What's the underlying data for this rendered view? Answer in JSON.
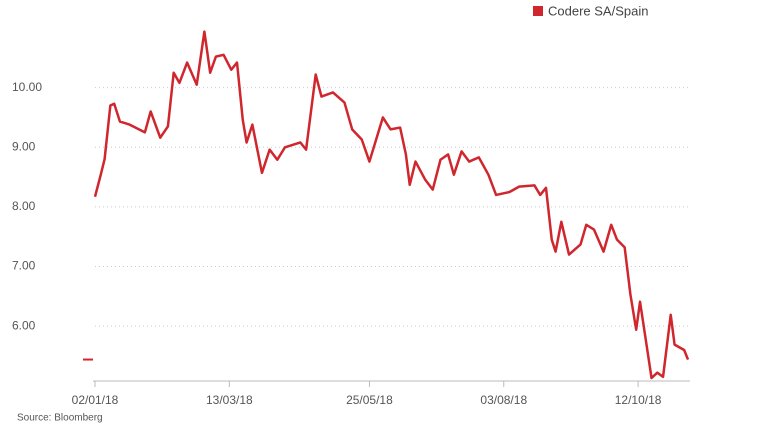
{
  "chart_data": {
    "type": "line",
    "source": "Source: Bloomberg",
    "x": [
      "02/01/18",
      "05/01/18",
      "07/01/18",
      "10/01/18",
      "12/01/18",
      "15/01/18",
      "20/01/18",
      "28/01/18",
      "31/01/18",
      "05/02/18",
      "09/02/18",
      "12/02/18",
      "15/02/18",
      "19/02/18",
      "24/02/18",
      "28/02/18",
      "03/03/18",
      "06/03/18",
      "10/03/18",
      "14/03/18",
      "17/03/18",
      "20/03/18",
      "22/03/18",
      "25/03/18",
      "30/03/18",
      "03/04/18",
      "07/04/18",
      "11/04/18",
      "19/04/18",
      "22/04/18",
      "27/04/18",
      "30/04/18",
      "06/05/18",
      "12/05/18",
      "16/05/18",
      "21/05/18",
      "25/05/18",
      "01/06/18",
      "05/06/18",
      "10/06/18",
      "13/06/18",
      "15/06/18",
      "18/06/18",
      "23/06/18",
      "27/06/18",
      "01/07/18",
      "05/07/18",
      "08/07/18",
      "12/07/18",
      "16/07/18",
      "21/07/18",
      "26/07/18",
      "30/07/18",
      "06/08/18",
      "11/08/18",
      "19/08/18",
      "22/08/18",
      "25/08/18",
      "28/08/18",
      "30/08/18",
      "02/09/18",
      "06/09/18",
      "12/09/18",
      "15/09/18",
      "19/09/18",
      "24/09/18",
      "28/09/18",
      "01/10/18",
      "05/10/18",
      "08/10/18",
      "11/10/18",
      "13/10/18",
      "16/10/18",
      "19/10/18",
      "22/10/18",
      "25/10/18",
      "29/10/18",
      "31/10/18",
      "05/11/18",
      "07/11/18"
    ],
    "series": [
      {
        "name": "Codere SA/Spain",
        "color": "#d0262d",
        "values": [
          8.17,
          8.54,
          8.8,
          9.7,
          9.73,
          9.43,
          9.38,
          9.25,
          9.6,
          9.16,
          9.35,
          10.25,
          10.08,
          10.42,
          10.05,
          10.94,
          10.25,
          10.52,
          10.55,
          10.3,
          10.42,
          9.46,
          9.08,
          9.38,
          8.57,
          8.96,
          8.79,
          9.0,
          9.08,
          8.96,
          10.22,
          9.85,
          9.92,
          9.75,
          9.3,
          9.13,
          8.76,
          9.5,
          9.3,
          9.33,
          8.88,
          8.37,
          8.76,
          8.46,
          8.29,
          8.79,
          8.88,
          8.54,
          8.93,
          8.76,
          8.83,
          8.54,
          8.2,
          8.25,
          8.34,
          8.36,
          8.2,
          8.32,
          7.45,
          7.25,
          7.75,
          7.2,
          7.37,
          7.7,
          7.62,
          7.25,
          7.7,
          7.45,
          7.32,
          6.53,
          5.94,
          6.41,
          5.77,
          5.13,
          5.22,
          5.15,
          6.19,
          5.69,
          5.6,
          5.44
        ]
      }
    ],
    "xlim": [
      "02/01/18",
      "07/11/18"
    ],
    "xticks": [
      "02/01/18",
      "13/03/18",
      "25/05/18",
      "03/08/18",
      "12/10/18"
    ],
    "ylim": [
      5.08,
      11
    ],
    "yticks": [
      {
        "value": 6,
        "label": "6.00"
      },
      {
        "value": 7,
        "label": "7.00"
      },
      {
        "value": 8,
        "label": "8.00"
      },
      {
        "value": 9,
        "label": "9.00"
      },
      {
        "value": 10,
        "label": "10.00"
      }
    ],
    "grid": true
  }
}
